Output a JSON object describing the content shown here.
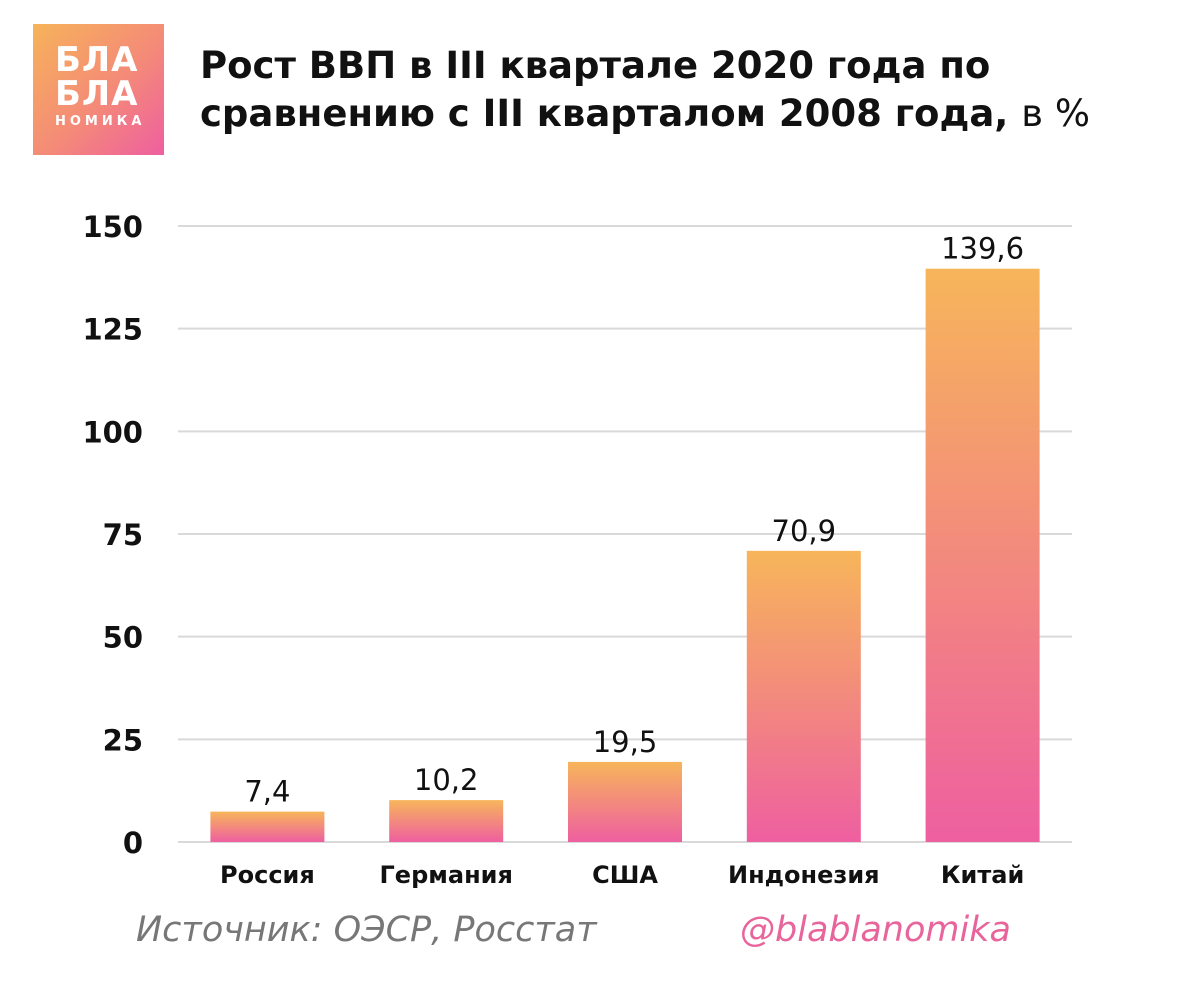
{
  "logo": {
    "line1": "БЛА",
    "line2": "БЛА",
    "line3": "НОМИКА"
  },
  "title": {
    "main": "Рост ВВП в III квартале 2020 года по сравнению с III кварталом 2008 года,",
    "unit": "в %"
  },
  "chart_data": {
    "type": "bar",
    "categories": [
      "Россия",
      "Германия",
      "США",
      "Индонезия",
      "Китай"
    ],
    "values": [
      7.4,
      10.2,
      19.5,
      70.9,
      139.6
    ],
    "value_labels": [
      "7,4",
      "10,2",
      "19,5",
      "70,9",
      "139,6"
    ],
    "y_ticks": [
      0,
      25,
      50,
      75,
      100,
      125,
      150
    ],
    "ylim": [
      0,
      150
    ],
    "grid": true,
    "bar_gradient": [
      "#f7b55a",
      "#ee5fa0"
    ]
  },
  "footer": {
    "source": "Источник: ОЭСР, Росстат",
    "handle": "@blablanomika"
  }
}
